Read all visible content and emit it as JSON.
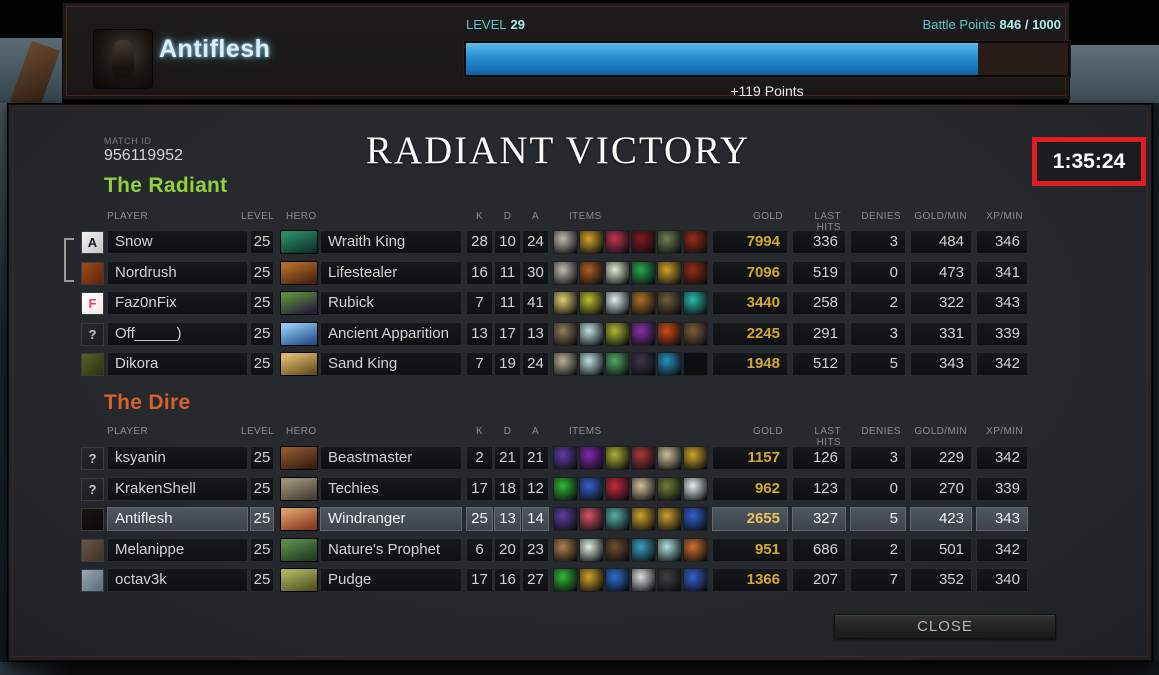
{
  "profile_bar": {
    "player_name": "Antiflesh",
    "level_label": "LEVEL",
    "level_value": "29",
    "battle_points_label": "Battle Points",
    "battle_points_value": "846 / 1000",
    "xp_progress_percent": 85,
    "points_gained": "+119 Points",
    "xp_bar_color": "#2a8ed2"
  },
  "match_header": {
    "match_id_label": "MATCH ID",
    "match_id": "956119952",
    "victory_title": "RADIANT VICTORY",
    "match_duration": "1:35:24",
    "duration_highlight_color": "#e21c24"
  },
  "columns": {
    "player": "PLAYER",
    "level": "LEVEL",
    "hero": "HERO",
    "kills": "K",
    "deaths": "D",
    "assists": "A",
    "items": "ITEMS",
    "gold": "GOLD",
    "last_hits": "LAST HITS",
    "denies": "DENIES",
    "gold_per_min": "GOLD/MIN",
    "xp_per_min": "XP/MIN"
  },
  "colors": {
    "gold_text": "#d2a933",
    "gold_text_self": "#e6c45a"
  },
  "teams": {
    "radiant": {
      "title": "The Radiant",
      "title_color": "#92d13d",
      "party_indicator_rows": [
        1,
        2
      ],
      "players": [
        {
          "name": "Snow",
          "level": "25",
          "hero": "Wraith King",
          "kills": "28",
          "deaths": "10",
          "assists": "24",
          "gold": "7994",
          "last_hits": "336",
          "denies": "3",
          "gold_per_min": "484",
          "xp_per_min": "346",
          "is_self": false,
          "avatar": {
            "glyph": "A",
            "fg": "#15151a",
            "colors": [
              "#f2f2f2",
              "#c6c6c6"
            ]
          },
          "hero_colors": [
            "#2a8a66",
            "#0e3328"
          ],
          "item_colors": [
            "#c2bab0",
            "#d0a428",
            "#c23454",
            "#801a22",
            "#6e8054",
            "#962c18"
          ]
        },
        {
          "name": "Nordrush",
          "level": "25",
          "hero": "Lifestealer",
          "kills": "16",
          "deaths": "11",
          "assists": "30",
          "gold": "7096",
          "last_hits": "519",
          "denies": "0",
          "gold_per_min": "473",
          "xp_per_min": "341",
          "is_self": false,
          "avatar": {
            "glyph": "",
            "fg": "",
            "colors": [
              "#a34a1a",
              "#5a2408"
            ]
          },
          "hero_colors": [
            "#b06a28",
            "#4a2410"
          ],
          "item_colors": [
            "#c2bab0",
            "#b05e20",
            "#e0ecd0",
            "#28a850",
            "#d0a428",
            "#962c18"
          ]
        },
        {
          "name": "Faz0nFix",
          "level": "25",
          "hero": "Rubick",
          "kills": "7",
          "deaths": "11",
          "assists": "41",
          "gold": "3440",
          "last_hits": "258",
          "denies": "2",
          "gold_per_min": "322",
          "xp_per_min": "343",
          "is_self": false,
          "avatar": {
            "glyph": "F",
            "fg": "#e8417a",
            "colors": [
              "#ffffff",
              "#f2e9e9"
            ]
          },
          "hero_colors": [
            "#5a8a3a",
            "#2a1a3e"
          ],
          "item_colors": [
            "#e0d070",
            "#b8c02c",
            "#e4f0f0",
            "#b07028",
            "#6e5e3a",
            "#2cb8ae"
          ]
        },
        {
          "name": "Off_____)",
          "level": "25",
          "hero": "Ancient Apparition",
          "kills": "13",
          "deaths": "17",
          "assists": "13",
          "gold": "2245",
          "last_hits": "291",
          "denies": "3",
          "gold_per_min": "331",
          "xp_per_min": "339",
          "is_self": false,
          "avatar": {
            "glyph": "?",
            "fg": "#c8c8c8",
            "colors": [
              "#26292c",
              "#1a1c1f"
            ]
          },
          "hero_colors": [
            "#8ec4ee",
            "#25518e"
          ],
          "item_colors": [
            "#8e7e5a",
            "#c0e0e0",
            "#b0b830",
            "#8a32aa",
            "#cc4c18",
            "#7e5e3a"
          ]
        },
        {
          "name": "Dikora",
          "level": "25",
          "hero": "Sand King",
          "kills": "7",
          "deaths": "19",
          "assists": "24",
          "gold": "1948",
          "last_hits": "512",
          "denies": "5",
          "gold_per_min": "343",
          "xp_per_min": "342",
          "is_self": false,
          "avatar": {
            "glyph": "",
            "fg": "",
            "colors": [
              "#5a6228",
              "#2a3010"
            ]
          },
          "hero_colors": [
            "#d8b868",
            "#6a5020"
          ],
          "item_colors": [
            "#b8b098",
            "#c0e0e0",
            "#54a864",
            "#3e3450",
            "#2a90c0",
            ""
          ]
        }
      ]
    },
    "dire": {
      "title": "The Dire",
      "title_color": "#d4622a",
      "players": [
        {
          "name": "ksyanin",
          "level": "25",
          "hero": "Beastmaster",
          "kills": "2",
          "deaths": "21",
          "assists": "21",
          "gold": "1157",
          "last_hits": "126",
          "denies": "3",
          "gold_per_min": "229",
          "xp_per_min": "342",
          "is_self": false,
          "avatar": {
            "glyph": "?",
            "fg": "#c8c8c8",
            "colors": [
              "#26292c",
              "#1a1c1f"
            ]
          },
          "hero_colors": [
            "#8a5530",
            "#3a1d10"
          ],
          "item_colors": [
            "#5e3ea2",
            "#8228b2",
            "#b0b034",
            "#a83a3a",
            "#d0c098",
            "#d0a428"
          ]
        },
        {
          "name": "KrakenShell",
          "level": "25",
          "hero": "Techies",
          "kills": "17",
          "deaths": "18",
          "assists": "12",
          "gold": "962",
          "last_hits": "123",
          "denies": "0",
          "gold_per_min": "270",
          "xp_per_min": "339",
          "is_self": false,
          "avatar": {
            "glyph": "?",
            "fg": "#c8c8c8",
            "colors": [
              "#26292c",
              "#1a1c1f"
            ]
          },
          "hero_colors": [
            "#9a9078",
            "#4a4034"
          ],
          "item_colors": [
            "#32b836",
            "#3460d0",
            "#c82a3c",
            "#d0c098",
            "#70803a",
            "#e4f0f0"
          ]
        },
        {
          "name": "Antiflesh",
          "level": "25",
          "hero": "Windranger",
          "kills": "25",
          "deaths": "13",
          "assists": "14",
          "gold": "2655",
          "last_hits": "327",
          "denies": "5",
          "gold_per_min": "423",
          "xp_per_min": "343",
          "is_self": true,
          "avatar": {
            "glyph": "",
            "fg": "",
            "colors": [
              "#1b1611",
              "#0a0806"
            ]
          },
          "hero_colors": [
            "#d89a66",
            "#8a3a1e"
          ],
          "item_colors": [
            "#5e3ea2",
            "#d85466",
            "#5cb0a8",
            "#d0a428",
            "#d0a030",
            "#3460d0"
          ]
        },
        {
          "name": "Melanippe",
          "level": "25",
          "hero": "Nature's Prophet",
          "kills": "6",
          "deaths": "20",
          "assists": "23",
          "gold": "951",
          "last_hits": "686",
          "denies": "2",
          "gold_per_min": "501",
          "xp_per_min": "342",
          "is_self": false,
          "avatar": {
            "glyph": "",
            "fg": "",
            "colors": [
              "#6a5a44",
              "#3a3024"
            ]
          },
          "hero_colors": [
            "#5a8a4a",
            "#1e3c1e"
          ],
          "item_colors": [
            "#b08050",
            "#e0f0e0",
            "#70502c",
            "#3ca0c0",
            "#b0e0e0",
            "#d07030"
          ]
        },
        {
          "name": "octav3k",
          "level": "25",
          "hero": "Pudge",
          "kills": "17",
          "deaths": "16",
          "assists": "27",
          "gold": "1366",
          "last_hits": "207",
          "denies": "7",
          "gold_per_min": "352",
          "xp_per_min": "340",
          "is_self": false,
          "avatar": {
            "glyph": "",
            "fg": "",
            "colors": [
              "#9aa8b4",
              "#5a6a78"
            ]
          },
          "hero_colors": [
            "#aab060",
            "#55551f"
          ],
          "item_colors": [
            "#32b836",
            "#d0a428",
            "#2a70d0",
            "#e0e0e0",
            "#404040",
            "#3460d0"
          ]
        }
      ]
    }
  },
  "footer": {
    "close_label": "CLOSE"
  }
}
